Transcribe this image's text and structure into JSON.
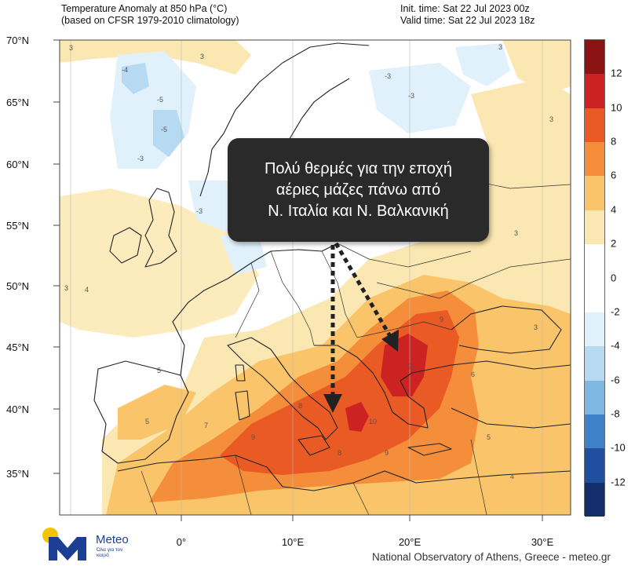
{
  "header": {
    "title_line1": "Temperature Anomaly at 850 hPa (°C)",
    "title_line2": "(based on CFSR 1979-2010 climatology)",
    "init_time": "Init. time: Sat 22 Jul 2023 00z",
    "valid_time": "Valid time: Sat 22 Jul 2023 18z"
  },
  "latitude_labels": [
    "70°N",
    "65°N",
    "60°N",
    "55°N",
    "50°N",
    "45°N",
    "40°N",
    "35°N"
  ],
  "longitude_labels": [
    "0°",
    "10°E",
    "20°E",
    "30°E"
  ],
  "callout": {
    "line1": "Πολύ θερμές για την εποχή",
    "line2": "αέριες μάζες πάνω από",
    "line3": "Ν. Ιταλία και Ν. Βαλκανική"
  },
  "colorbar": {
    "labels": [
      "12",
      "10",
      "8",
      "6",
      "4",
      "2",
      "0",
      "-2",
      "-4",
      "-6",
      "-8",
      "-10",
      "-12"
    ],
    "colors": [
      "#8b1313",
      "#cc2222",
      "#ea5a24",
      "#f58e3a",
      "#f9c46a",
      "#fae7b1",
      "#ffffff",
      "#ffffff",
      "#e0f1fb",
      "#b5daf2",
      "#7fb9e3",
      "#3f82c9",
      "#1f4f9e",
      "#142d6b"
    ]
  },
  "map_colors": {
    "background": "#ffffff",
    "light_yellow": "#fae7b1",
    "yellow": "#f9c46a",
    "orange": "#f58e3a",
    "dark_orange": "#ea5a24",
    "red": "#cc2222",
    "light_blue": "#e0f1fb",
    "blue": "#b5daf2"
  },
  "contour_labels": [
    "3",
    "4",
    "5",
    "6",
    "7",
    "8",
    "9",
    "10",
    "-3",
    "-4",
    "-5"
  ],
  "logo": {
    "name": "Meteo",
    "tagline": "Όλα για τον καιρό"
  },
  "credit": "National Observatory of Athens, Greece - meteo.gr"
}
